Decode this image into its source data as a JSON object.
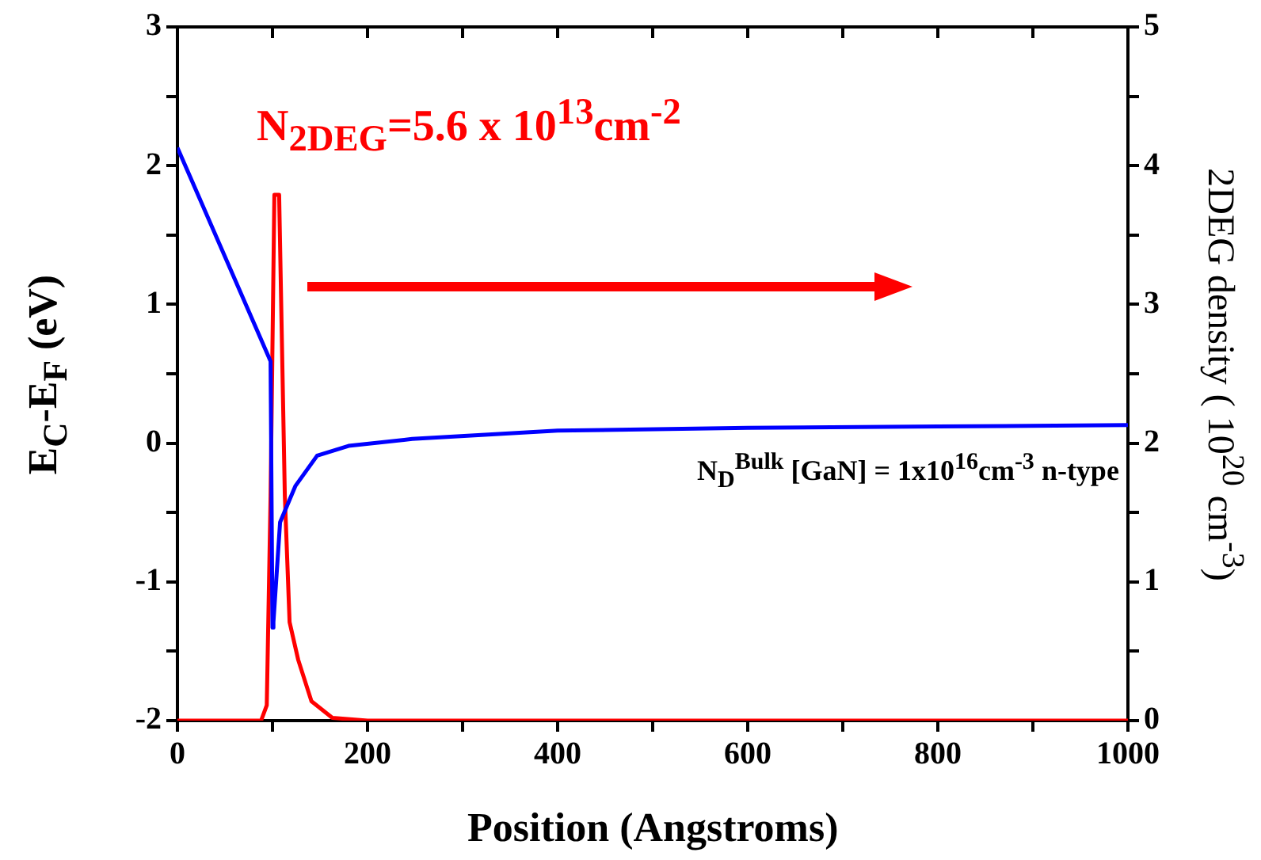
{
  "chart_data": {
    "type": "line",
    "xlabel": "Position (Angstroms)",
    "ylabel": "E$_{C}$-E$_{F}$ (eV)",
    "y2label": "2DEG density ( 10$^{20}$ cm$^{-3}$)",
    "xlim": [
      0,
      1000
    ],
    "xticks": [
      0,
      {
        "value": 100,
        "label": null
      },
      200,
      {
        "value": 300,
        "label": null
      },
      400,
      {
        "value": 500,
        "label": null
      },
      600,
      {
        "value": 700,
        "label": null
      },
      800,
      {
        "value": 900,
        "label": null
      },
      1000
    ],
    "ylim": [
      -2,
      3
    ],
    "yticks": [
      -2,
      {
        "value": -1.5,
        "label": null
      },
      -1,
      {
        "value": -0.5,
        "label": null
      },
      0,
      {
        "value": 0.5,
        "label": null
      },
      1,
      {
        "value": 1.5,
        "label": null
      },
      2,
      {
        "value": 2.5,
        "label": null
      },
      3
    ],
    "y2lim": [
      0,
      5
    ],
    "y2ticks": [
      0,
      {
        "value": 0.5,
        "label": null
      },
      1,
      {
        "value": 1.5,
        "label": null
      },
      2,
      {
        "value": 2.5,
        "label": null
      },
      3,
      {
        "value": 3.5,
        "label": null
      },
      4,
      {
        "value": 4.5,
        "label": null
      },
      5
    ],
    "grid": false,
    "legend": false,
    "marker": "none",
    "line_style": "solid",
    "series": [
      {
        "color": "#0000ff",
        "x": [
          0,
          98,
          100,
          101,
          108,
          124,
          147,
          180,
          247,
          400,
          600,
          800,
          1000
        ],
        "values": [
          2.13,
          0.59,
          -1.33,
          -1.29,
          -0.57,
          -0.31,
          -0.09,
          -0.02,
          0.03,
          0.09,
          0.11,
          0.12,
          0.13
        ]
      },
      {
        "color": "#ff0000",
        "axis": "y2",
        "x": [
          0,
          88,
          94,
          98,
          102,
          107,
          113,
          118,
          127,
          141,
          163,
          200,
          1000
        ],
        "values": [
          0,
          0,
          0.11,
          1.62,
          3.79,
          3.79,
          1.62,
          0.71,
          0.44,
          0.14,
          0.02,
          0,
          0
        ]
      }
    ],
    "annotations": [
      "N$_{2DEG}$=5.6 x 10$^{13}$cm$^{-2}$",
      "N$_{D}$$^{Bulk}$ [GaN] = 1x10$^{16}$cm$^{-3}$ n-type"
    ]
  }
}
